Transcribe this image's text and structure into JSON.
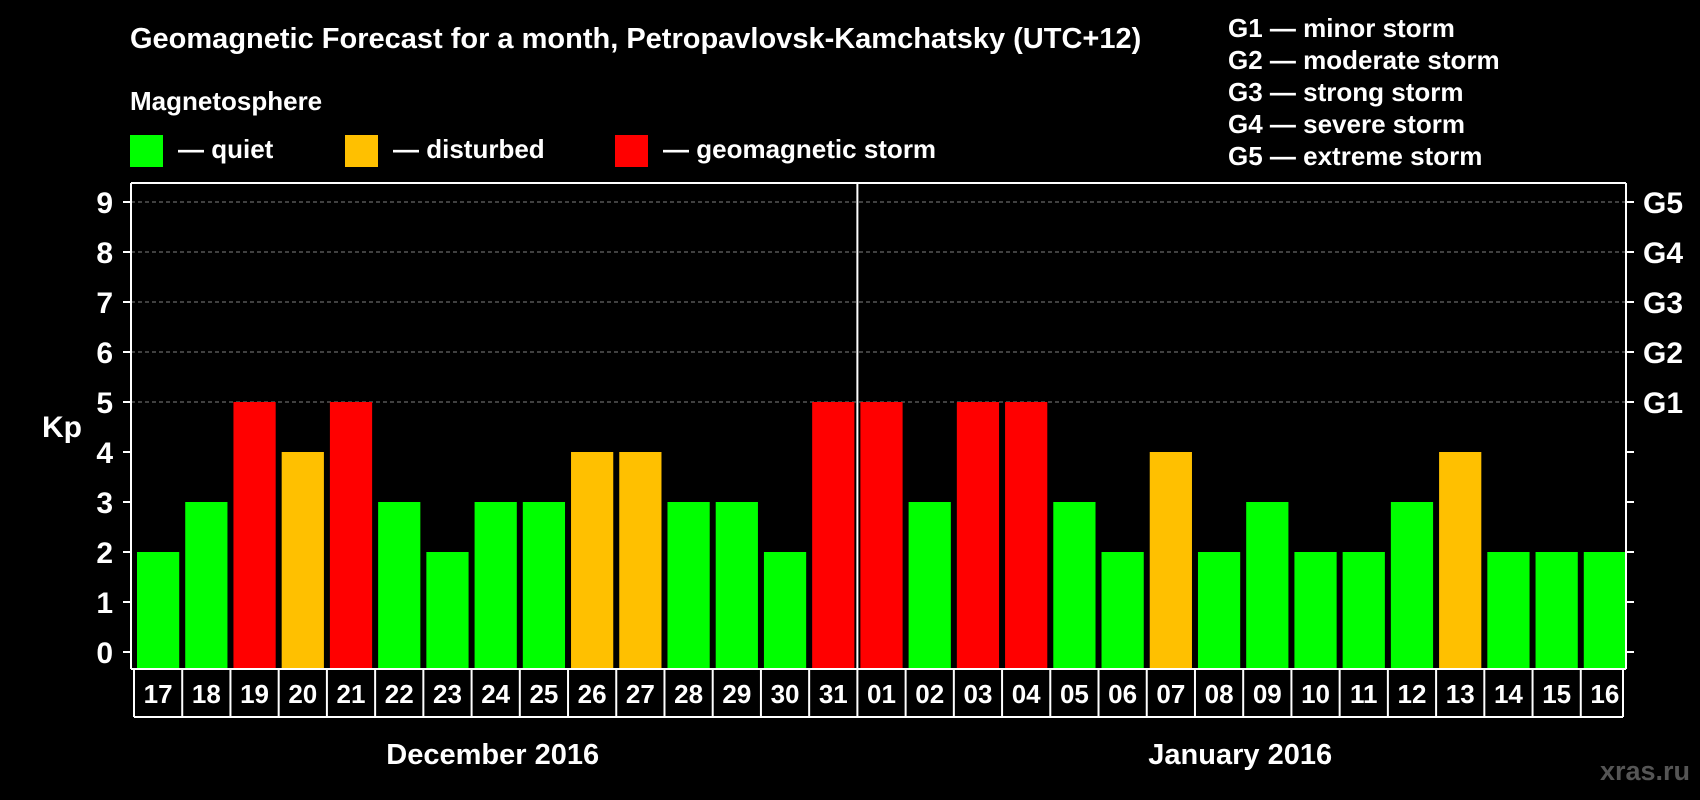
{
  "colors": {
    "background": "#000000",
    "quiet": "#00ff00",
    "disturbed": "#ffc000",
    "storm": "#ff0000",
    "grid": "#808080",
    "text": "#ffffff",
    "watermark": "#555555"
  },
  "chart_data": {
    "type": "bar",
    "title": "Geomagnetic Forecast for a month, Petropavlovsk-Kamchatsky (UTC+12)",
    "ylabel": "Kp",
    "ylim": [
      0,
      9
    ],
    "yticks": [
      "0",
      "1",
      "2",
      "3",
      "4",
      "5",
      "6",
      "7",
      "8",
      "9"
    ],
    "storm_levels": [
      {
        "kp": 5,
        "label": "G1"
      },
      {
        "kp": 6,
        "label": "G2"
      },
      {
        "kp": 7,
        "label": "G3"
      },
      {
        "kp": 8,
        "label": "G4"
      },
      {
        "kp": 9,
        "label": "G5"
      }
    ],
    "storm_legend": [
      "G1 — minor storm",
      "G2 — moderate storm",
      "G3 — strong storm",
      "G4 — severe storm",
      "G5 — extreme storm"
    ],
    "legend_title": "Magnetosphere",
    "legend": [
      {
        "label": "— quiet",
        "status": "quiet"
      },
      {
        "label": "— disturbed",
        "status": "disturbed"
      },
      {
        "label": "— geomagnetic storm",
        "status": "storm"
      }
    ],
    "categories": [
      "17",
      "18",
      "19",
      "20",
      "21",
      "22",
      "23",
      "24",
      "25",
      "26",
      "27",
      "28",
      "29",
      "30",
      "31",
      "01",
      "02",
      "03",
      "04",
      "05",
      "06",
      "07",
      "08",
      "09",
      "10",
      "11",
      "12",
      "13",
      "14",
      "15",
      "16"
    ],
    "values": [
      2,
      3,
      5,
      4,
      5,
      3,
      2,
      3,
      3,
      4,
      4,
      3,
      3,
      2,
      5,
      5,
      3,
      5,
      5,
      3,
      2,
      4,
      2,
      3,
      2,
      2,
      3,
      4,
      2,
      2,
      2
    ],
    "months": [
      {
        "label": "December 2016",
        "start": 0,
        "end": 14
      },
      {
        "label": "January 2016",
        "start": 15,
        "end": 30
      }
    ]
  },
  "watermark": "xras.ru"
}
